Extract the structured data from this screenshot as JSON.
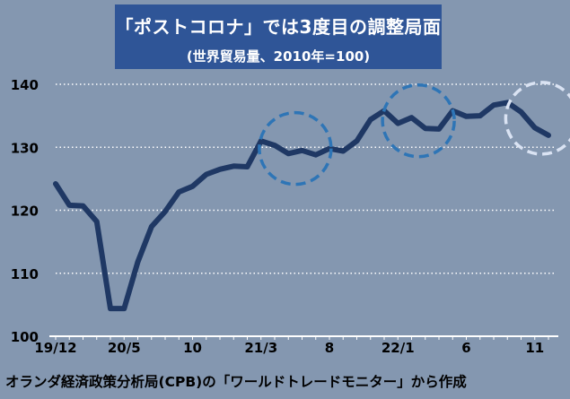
{
  "title": "「ポストコロナ」では3度目の調整局面",
  "subtitle": "(世界貿易量、2010年=100)",
  "source": "オランダ経済政策分析局(CPB)の「ワールドトレードモニター」から作成",
  "colors": {
    "background": "#8497b0",
    "title_box": "#2f5597",
    "line": "#1f3864",
    "circle_dark": "#2e75b6",
    "circle_light": "#dae3f3",
    "grid": "#ffffff"
  },
  "chart_data": {
    "type": "line",
    "title": "「ポストコロナ」では3度目の調整局面",
    "subtitle": "(世界貿易量、2010年=100)",
    "ylim": [
      100,
      140
    ],
    "yticks": [
      100,
      110,
      120,
      130,
      140
    ],
    "grid": true,
    "x_tick_labels": [
      {
        "label": "19/12",
        "index": 0
      },
      {
        "label": "20/5",
        "index": 5
      },
      {
        "label": "10",
        "index": 10
      },
      {
        "label": "21/3",
        "index": 15
      },
      {
        "label": "8",
        "index": 20
      },
      {
        "label": "22/1",
        "index": 25
      },
      {
        "label": "6",
        "index": 30
      },
      {
        "label": "11",
        "index": 35
      }
    ],
    "values": [
      124.2,
      120.8,
      120.7,
      118.2,
      104.4,
      104.4,
      111.8,
      117.4,
      119.8,
      122.9,
      123.8,
      125.7,
      126.5,
      127.0,
      126.9,
      131.0,
      130.3,
      129.0,
      129.5,
      128.8,
      129.8,
      129.4,
      131.0,
      134.4,
      135.8,
      133.8,
      134.7,
      133.0,
      132.9,
      135.8,
      134.9,
      135.0,
      136.7,
      137.1,
      135.6,
      133.1,
      131.9
    ],
    "annotations": [
      {
        "type": "dashed-circle",
        "style": "dark",
        "center_index": 17.5,
        "center_value": 129.8
      },
      {
        "type": "dashed-circle",
        "style": "dark",
        "center_index": 26.5,
        "center_value": 134.2
      },
      {
        "type": "dashed-circle",
        "style": "light",
        "center_index": 35.5,
        "center_value": 134.6
      }
    ]
  }
}
